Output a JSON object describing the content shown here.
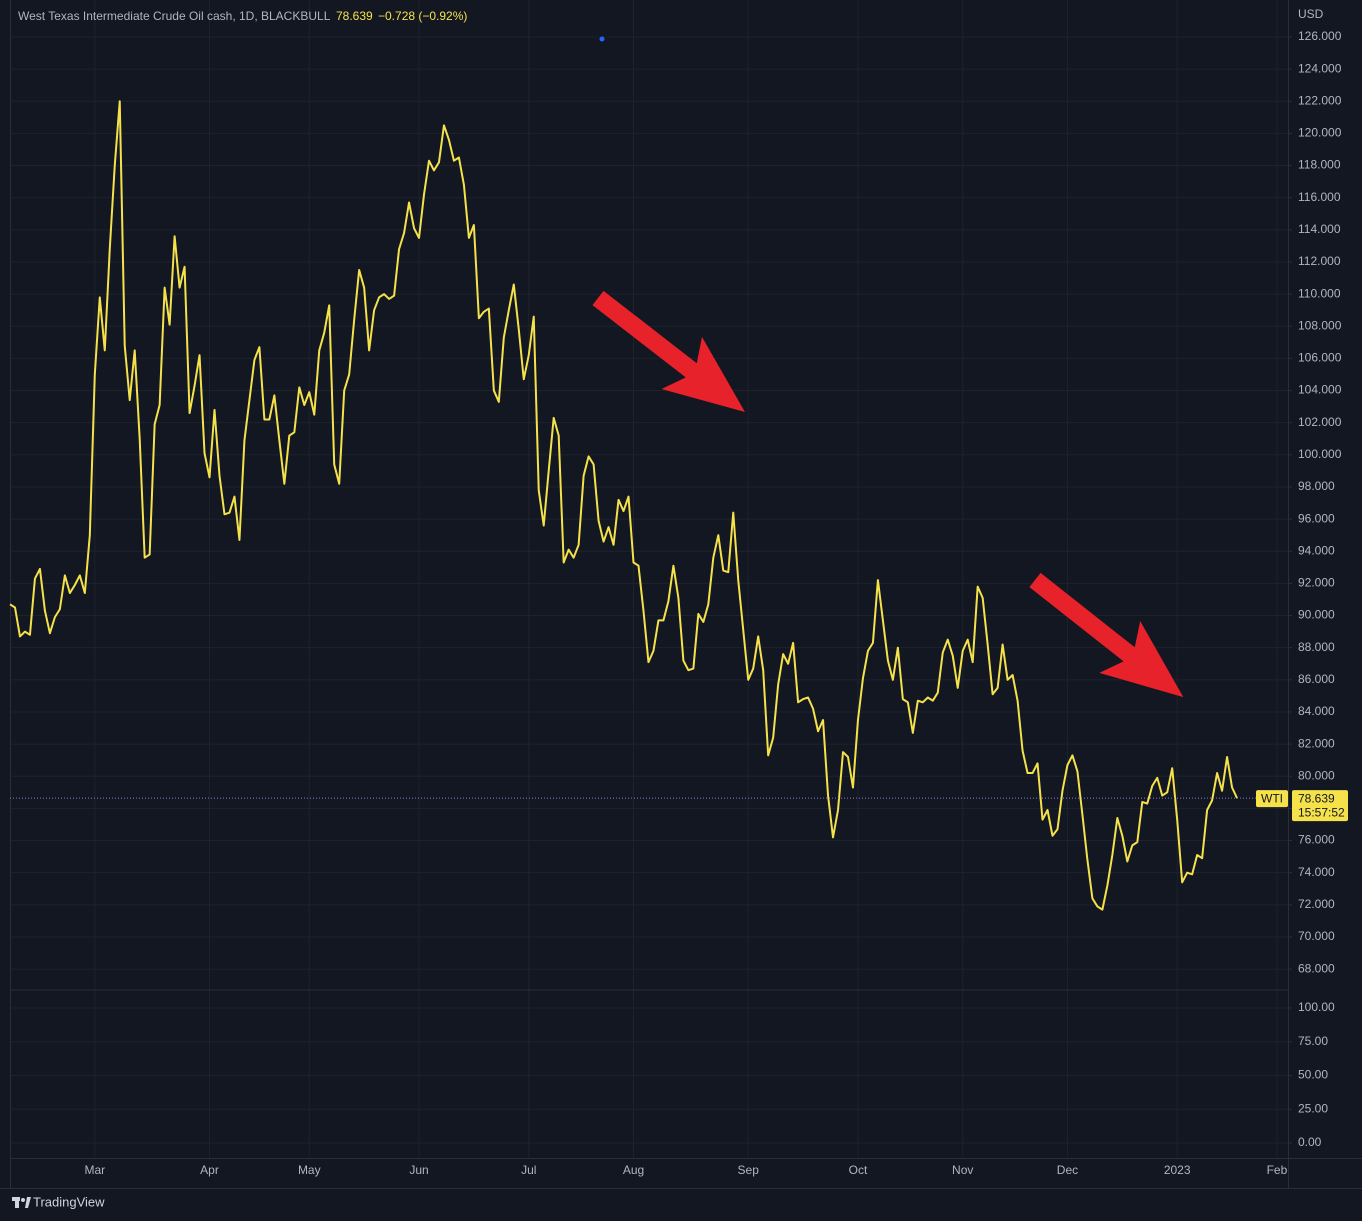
{
  "chart_data": {
    "type": "line",
    "title": "West Texas Intermediate Crude Oil cash, 1D, BLACKBULL",
    "last_price": 78.639,
    "change": "−0.728 (−0.92%)",
    "currency": "USD",
    "symbol": "WTI",
    "countdown": "15:57:52",
    "brand": "TradingView",
    "grid": true,
    "categories": [
      null,
      null,
      null,
      null,
      null,
      null,
      null,
      null,
      null,
      null,
      null,
      null,
      null,
      null,
      null,
      null,
      null,
      "Mar",
      null,
      null,
      null,
      null,
      null,
      null,
      null,
      null,
      null,
      null,
      null,
      null,
      null,
      null,
      null,
      null,
      null,
      null,
      null,
      null,
      null,
      null,
      "Apr",
      null,
      null,
      null,
      null,
      null,
      null,
      null,
      null,
      null,
      null,
      null,
      null,
      null,
      null,
      null,
      null,
      null,
      null,
      null,
      "May",
      null,
      null,
      null,
      null,
      null,
      null,
      null,
      null,
      null,
      null,
      null,
      null,
      null,
      null,
      null,
      null,
      null,
      null,
      null,
      null,
      null,
      "Jun",
      null,
      null,
      null,
      null,
      null,
      null,
      null,
      null,
      null,
      null,
      null,
      null,
      null,
      null,
      null,
      null,
      null,
      null,
      null,
      null,
      null,
      "Jul",
      null,
      null,
      null,
      null,
      null,
      null,
      null,
      null,
      null,
      null,
      null,
      null,
      null,
      null,
      null,
      null,
      null,
      null,
      null,
      null,
      "Aug",
      null,
      null,
      null,
      null,
      null,
      null,
      null,
      null,
      null,
      null,
      null,
      null,
      null,
      null,
      null,
      null,
      null,
      null,
      null,
      null,
      null,
      null,
      "Sep",
      null,
      null,
      null,
      null,
      null,
      null,
      null,
      null,
      null,
      null,
      null,
      null,
      null,
      null,
      null,
      null,
      null,
      null,
      null,
      null,
      null,
      "Oct",
      null,
      null,
      null,
      null,
      null,
      null,
      null,
      null,
      null,
      null,
      null,
      null,
      null,
      null,
      null,
      null,
      null,
      null,
      null,
      null,
      "Nov",
      null,
      null,
      null,
      null,
      null,
      null,
      null,
      null,
      null,
      null,
      null,
      null,
      null,
      null,
      null,
      null,
      null,
      null,
      null,
      null,
      "Dec",
      null,
      null,
      null,
      null,
      null,
      null,
      null,
      null,
      null,
      null,
      null,
      null,
      null,
      null,
      null,
      null,
      null,
      null,
      null,
      null,
      null,
      "2023",
      null,
      null,
      null,
      null,
      null,
      null,
      null,
      null,
      null,
      null,
      null,
      null,
      null,
      null,
      null,
      null,
      null,
      null,
      null,
      "Feb"
    ],
    "series": [
      {
        "name": "WTI",
        "color": "#f5e24b",
        "values": [
          90.7,
          90.5,
          88.7,
          89,
          88.8,
          92.3,
          92.9,
          90.3,
          88.9,
          89.9,
          90.4,
          92.5,
          91.4,
          91.9,
          92.5,
          91.4,
          95,
          105,
          109.8,
          106.5,
          112.8,
          118,
          122,
          106.8,
          103.4,
          106.5,
          101,
          93.6,
          93.8,
          101.9,
          103.1,
          110.4,
          108.1,
          113.6,
          110.4,
          111.7,
          102.6,
          104.3,
          106.2,
          100.1,
          98.6,
          102.8,
          98.7,
          96.3,
          96.4,
          97.4,
          94.7,
          100.9,
          103.4,
          105.9,
          106.7,
          102.2,
          102.2,
          103.7,
          100.9,
          98.2,
          101.2,
          101.4,
          104.2,
          103.1,
          103.9,
          102.5,
          106.5,
          107.6,
          109.3,
          99.4,
          98.2,
          104,
          105,
          108.4,
          111.5,
          110.4,
          106.5,
          109,
          109.8,
          110,
          109.7,
          109.9,
          112.8,
          113.8,
          115.7,
          114.1,
          113.5,
          116.2,
          118.3,
          117.7,
          118.2,
          120.5,
          119.6,
          118.3,
          118.5,
          116.8,
          113.5,
          114.3,
          108.5,
          108.9,
          109.1,
          104,
          103.3,
          107.3,
          109,
          110.6,
          107.8,
          104.7,
          106.2,
          108.6,
          97.8,
          95.6,
          99,
          102.3,
          101.2,
          93.3,
          94.1,
          93.6,
          94.4,
          98.7,
          99.9,
          99.4,
          95.9,
          94.6,
          95.5,
          94.4,
          97.2,
          96.5,
          97.4,
          93.3,
          93.1,
          90.3,
          87.1,
          87.8,
          89.7,
          89.7,
          90.9,
          93.1,
          91.1,
          87.2,
          86.6,
          86.7,
          90.1,
          89.6,
          90.7,
          93.6,
          95,
          92.8,
          92.7,
          96.4,
          92.2,
          89.1,
          86,
          86.7,
          88.7,
          86.6,
          81.3,
          82.4,
          85.7,
          87.6,
          87,
          88.3,
          84.6,
          84.8,
          84.9,
          84.2,
          82.8,
          83.5,
          78.8,
          76.2,
          77.9,
          81.5,
          81.2,
          79.3,
          83.5,
          86.1,
          87.8,
          88.3,
          92.2,
          89.7,
          87.2,
          86,
          88,
          84.8,
          84.6,
          82.7,
          84.7,
          84.6,
          84.9,
          84.7,
          85.2,
          87.7,
          88.5,
          87.5,
          85.5,
          87.8,
          88.5,
          87.1,
          91.8,
          91.1,
          88.2,
          85.1,
          85.5,
          88.2,
          86,
          86.3,
          84.7,
          81.6,
          80.2,
          80.2,
          80.8,
          77.3,
          77.9,
          76.3,
          76.7,
          79.1,
          80.7,
          81.3,
          80.3,
          77.6,
          74.8,
          72.4,
          71.9,
          71.7,
          73.2,
          75.1,
          77.4,
          76.3,
          74.7,
          75.7,
          75.9,
          78.4,
          78.3,
          79.4,
          79.9,
          78.8,
          79,
          80.5,
          77.3,
          73.4,
          74,
          73.9,
          75.1,
          74.9,
          77.9,
          78.5,
          80.2,
          79.1,
          81.2,
          79.3,
          78.639,
          null,
          null,
          null,
          null,
          null,
          null,
          null,
          null
        ]
      }
    ],
    "ylim": [
      66.7,
      128.3
    ],
    "yticks": [
      {
        "value": 68,
        "label": "68.000"
      },
      {
        "value": 70,
        "label": "70.000"
      },
      {
        "value": 72,
        "label": "72.000"
      },
      {
        "value": 74,
        "label": "74.000"
      },
      {
        "value": 76,
        "label": "76.000"
      },
      {
        "value": 78,
        "label": "78.000"
      },
      {
        "value": 80,
        "label": "80.000"
      },
      {
        "value": 82,
        "label": "82.000"
      },
      {
        "value": 84,
        "label": "84.000"
      },
      {
        "value": 86,
        "label": "86.000"
      },
      {
        "value": 88,
        "label": "88.000"
      },
      {
        "value": 90,
        "label": "90.000"
      },
      {
        "value": 92,
        "label": "92.000"
      },
      {
        "value": 94,
        "label": "94.000"
      },
      {
        "value": 96,
        "label": "96.000"
      },
      {
        "value": 98,
        "label": "98.000"
      },
      {
        "value": 100,
        "label": "100.000"
      },
      {
        "value": 102,
        "label": "102.000"
      },
      {
        "value": 104,
        "label": "104.000"
      },
      {
        "value": 106,
        "label": "106.000"
      },
      {
        "value": 108,
        "label": "108.000"
      },
      {
        "value": 110,
        "label": "110.000"
      },
      {
        "value": 112,
        "label": "112.000"
      },
      {
        "value": 114,
        "label": "114.000"
      },
      {
        "value": 116,
        "label": "116.000"
      },
      {
        "value": 118,
        "label": "118.000"
      },
      {
        "value": 120,
        "label": "120.000"
      },
      {
        "value": 122,
        "label": "122.000"
      },
      {
        "value": 124,
        "label": "124.000"
      },
      {
        "value": 126,
        "label": "126.000"
      }
    ],
    "y2lim": [
      -11.1,
      113.3
    ],
    "y2ticks": [
      {
        "value": 0,
        "label": "0.00"
      },
      {
        "value": 25,
        "label": "25.00"
      },
      {
        "value": 50,
        "label": "50.00"
      },
      {
        "value": 75,
        "label": "75.00"
      },
      {
        "value": 100,
        "label": "100.00"
      }
    ]
  }
}
